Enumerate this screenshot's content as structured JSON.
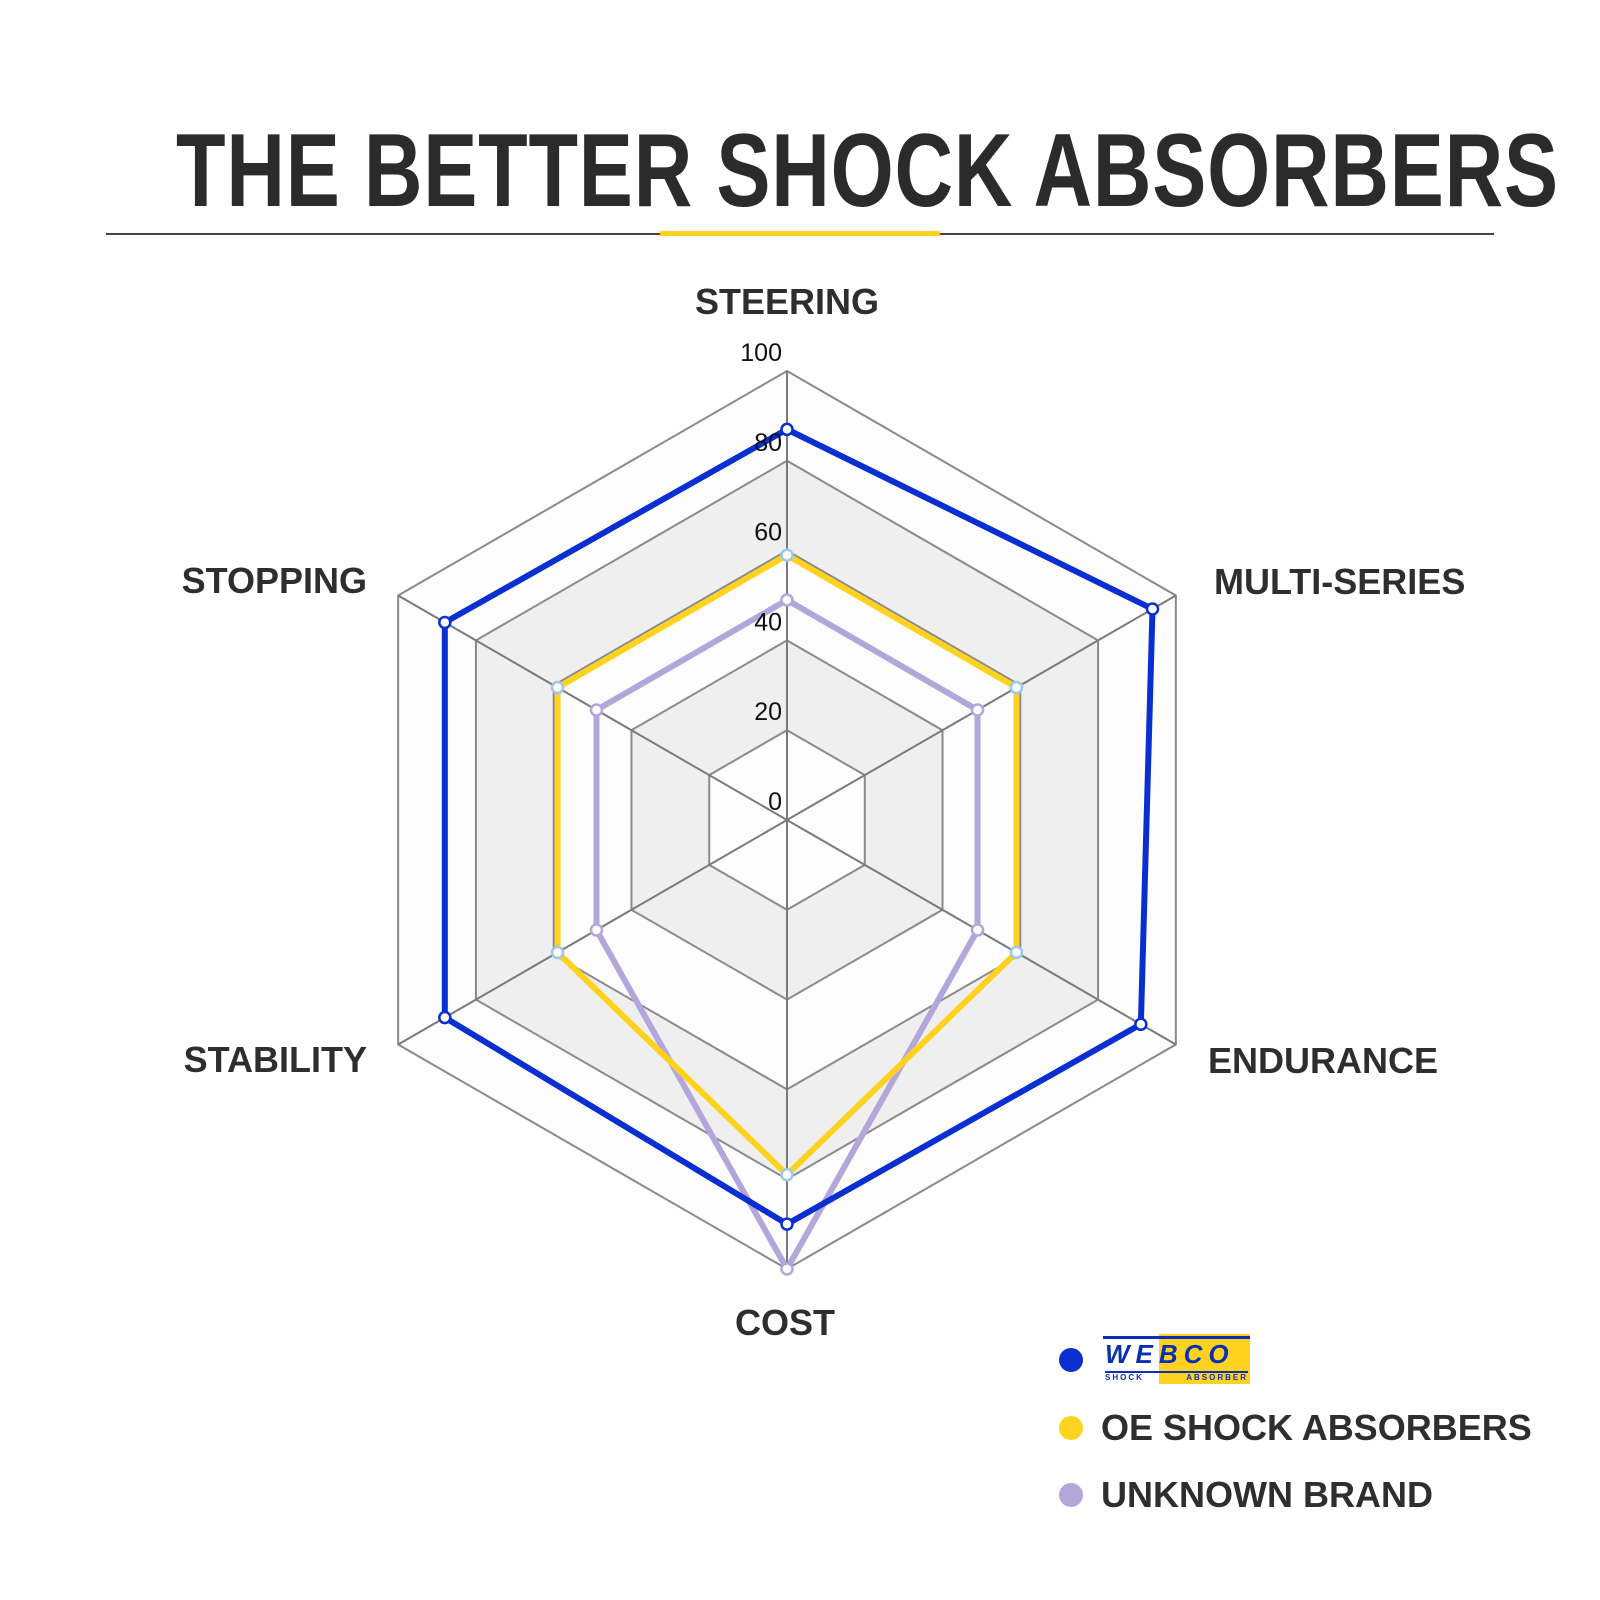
{
  "title": "THE BETTER SHOCK ABSORBERS",
  "colors": {
    "accent": "#ffd21f",
    "webco": "#0a2fd0",
    "oe": "#ffd21f",
    "unknown": "#b3a6db"
  },
  "legend": {
    "logo_text": "WEBCO",
    "logo_subtext_left": "SHOCK",
    "logo_subtext_right": "ABSORBER"
  },
  "chart_data": {
    "type": "radar",
    "categories": [
      "STEERING",
      "MULTI-SERIES",
      "ENDURANCE",
      "COST",
      "STABILITY",
      "STOPPING"
    ],
    "rlim": [
      0,
      100
    ],
    "ticks": [
      "0",
      "20",
      "40",
      "60",
      "80",
      "100"
    ],
    "grid": true,
    "legend_position": "bottom-right",
    "series": [
      {
        "name": "WEBCO",
        "color": "#0a2fd0",
        "values": [
          87,
          94,
          91,
          90,
          88,
          88
        ]
      },
      {
        "name": "OE SHOCK ABSORBERS",
        "color": "#ffd21f",
        "values": [
          59,
          59,
          59,
          79,
          59,
          59
        ]
      },
      {
        "name": "UNKNOWN BRAND",
        "color": "#b3a6db",
        "values": [
          49,
          49,
          49,
          100,
          49,
          49
        ]
      }
    ]
  }
}
